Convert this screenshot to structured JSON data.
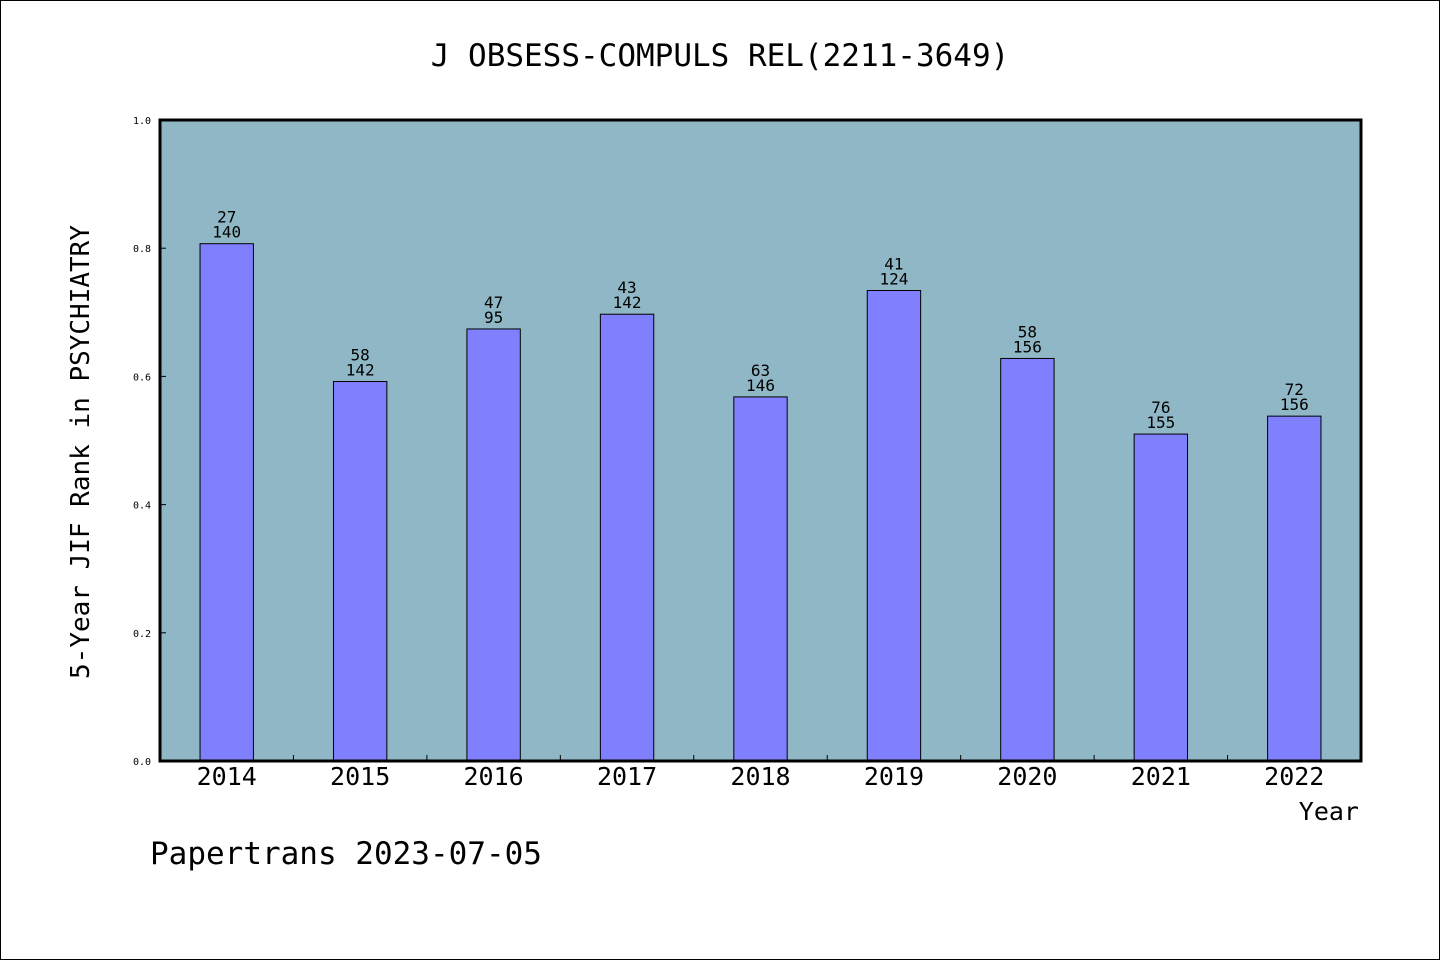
{
  "chart_data": {
    "type": "bar",
    "title": "J OBSESS-COMPULS REL(2211-3649)",
    "xlabel": "Year",
    "ylabel": "5-Year JIF Rank in PSYCHIATRY",
    "categories": [
      "2014",
      "2015",
      "2016",
      "2017",
      "2018",
      "2019",
      "2020",
      "2021",
      "2022"
    ],
    "values": [
      0.807,
      0.592,
      0.674,
      0.697,
      0.568,
      0.734,
      0.628,
      0.51,
      0.538
    ],
    "rank": [
      "27",
      "58",
      "47",
      "43",
      "63",
      "41",
      "58",
      "76",
      "72"
    ],
    "total": [
      "140",
      "142",
      "95",
      "142",
      "146",
      "124",
      "156",
      "155",
      "156"
    ],
    "ylim": [
      0,
      1.0
    ],
    "yticks": [
      "0.0",
      "0.2",
      "0.4",
      "0.6",
      "0.8",
      "1.0"
    ],
    "grid": false,
    "colors": {
      "plot_background": "#8fb7c5",
      "bar_fill": "#8080ff",
      "bar_stroke": "#000000"
    }
  },
  "footer": "Papertrans 2023-07-05"
}
